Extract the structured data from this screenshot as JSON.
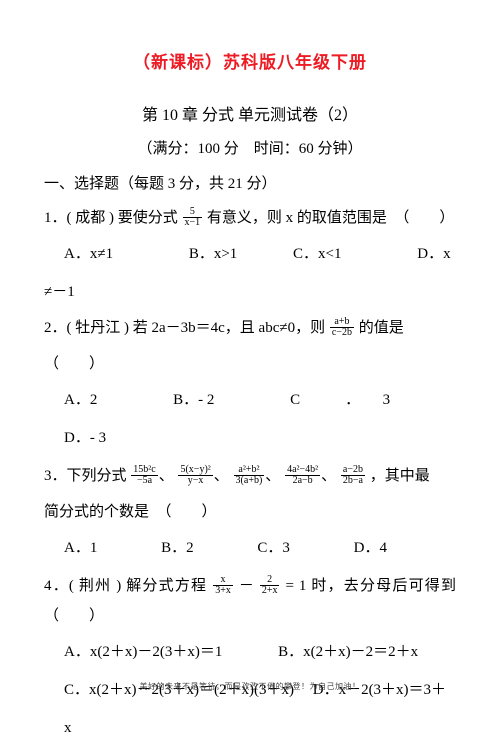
{
  "title_red": "（新课标）苏科版八年级下册",
  "subtitle": "第 10 章  分式  单元测试卷（2）",
  "meta": "（满分：100 分　时间：60 分钟）",
  "section1": "一、选择题（每题 3 分，共 21 分）",
  "q1": {
    "stem_a": "1．( 成都 ) 要使分式",
    "frac_num": "5",
    "frac_den": "x−1",
    "stem_b": "有意义，则 x 的取值范围是　（　　）",
    "optA": "A．x≠1",
    "optB": "B．x>1",
    "optC": "C．x<1",
    "optD": "D．x",
    "cont": "≠－1"
  },
  "q2": {
    "stem_a": "2．( 牡丹江 ) 若  2a－3b＝4c，且  abc≠0，则",
    "frac_num": "a+b",
    "frac_den": "c−2b",
    "stem_b": "的值是",
    "paren": "（　　）",
    "optA": "A．2",
    "optB": "B．- 2",
    "optC": "C　　　．　　3",
    "optD": "D．- 3"
  },
  "q3": {
    "stem_a": "3．下列分式",
    "f1n": "15b²c",
    "f1d": "−5a",
    "f2n": "5(x−y)²",
    "f2d": "y−x",
    "f3n": "a²+b²",
    "f3d": "3(a+b)",
    "f4n": "4a²−4b²",
    "f4d": "2a−b",
    "f5n": "a−2b",
    "f5d": "2b−a",
    "stem_b": "，其中最",
    "stem_c": "简分式的个数是　（　　）",
    "optA": "A．1",
    "optB": "B．2",
    "optC": "C．3",
    "optD": "D．4"
  },
  "q4": {
    "stem_a": "4．( 荆州 ) 解分式方程",
    "f1n": "x",
    "f1d": "3+x",
    "minus": "－",
    "f2n": "2",
    "f2d": "2+x",
    "eq": "= 1",
    "stem_b": "时，去分母后可得到　（　　）",
    "optA": "A．x(2＋x)－2(3＋x)＝1",
    "optB": "B．x(2＋x)－2＝2＋x",
    "optC": "C．x(2＋x)－2(3＋x)＝(2＋x)(3＋x)",
    "optD": "D．x－2(3＋x)＝3＋",
    "cont": "x"
  },
  "footer": "美好的未来不是等待，而是孜孜不倦的攀登！为自己加油！"
}
